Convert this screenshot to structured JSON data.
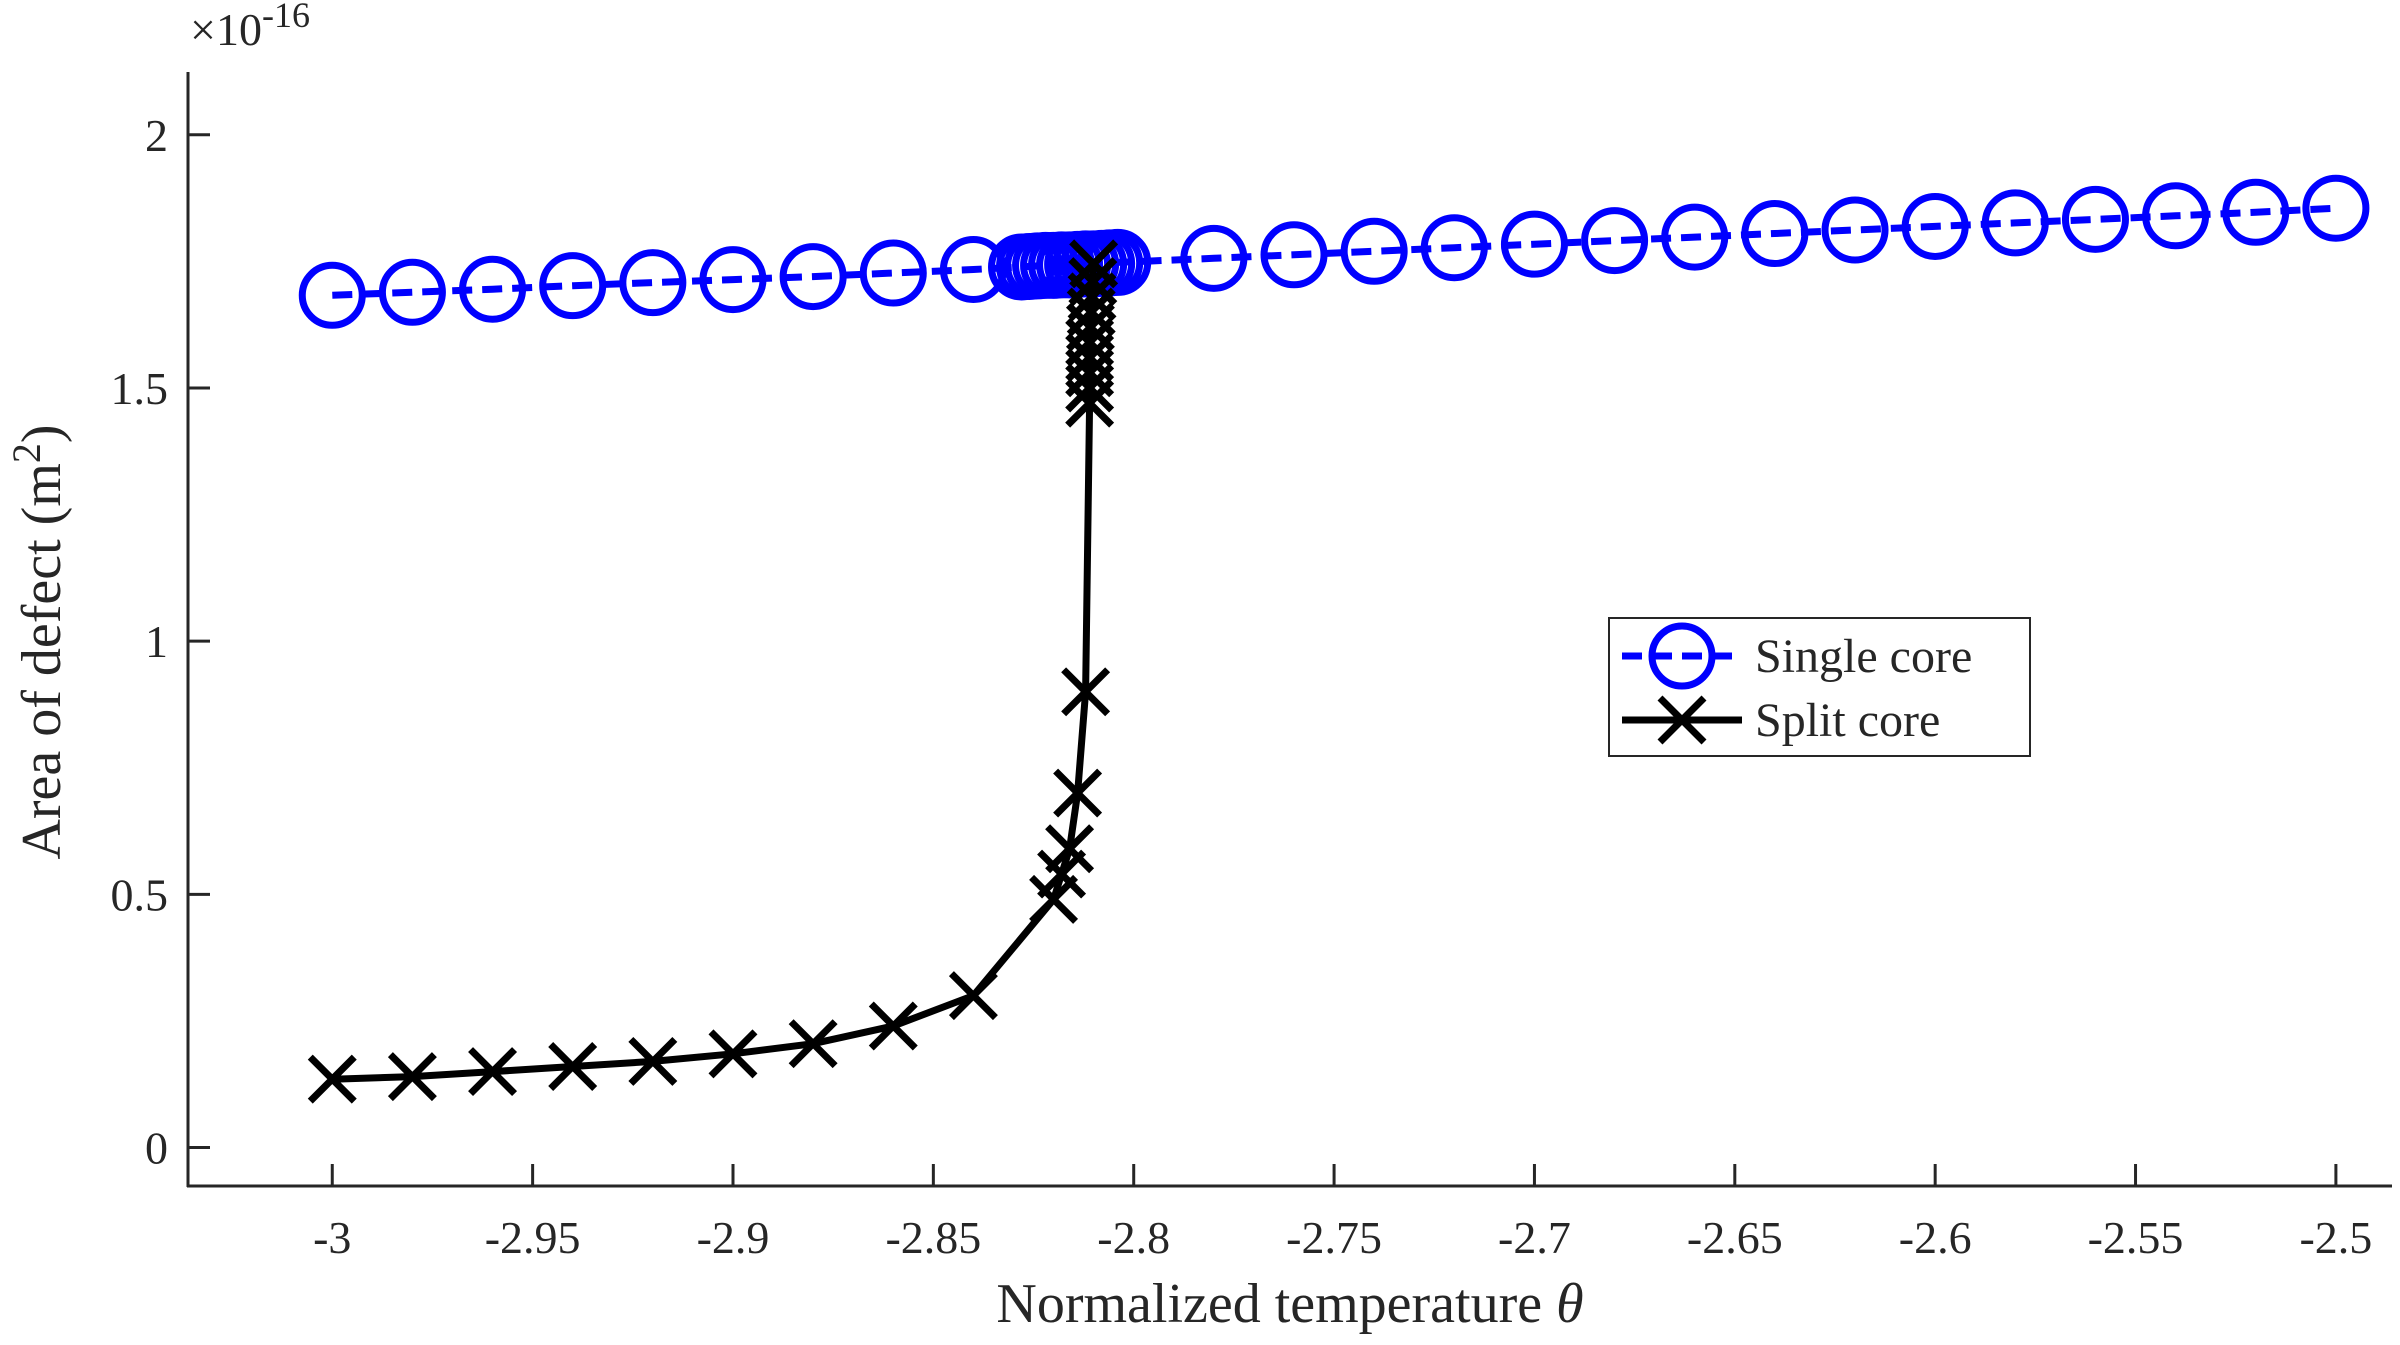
{
  "chart_data": {
    "type": "line",
    "title": "",
    "xlabel": "Normalized  temperature",
    "xlabel_symbol": "θ",
    "ylabel": "Area  of  defect  (m",
    "ylabel_sup": "2",
    "ylabel_end": ")",
    "y_exponent_prefix": "×10",
    "y_exponent": "-16",
    "xlim": [
      -3.036,
      -2.486
    ],
    "ylim": [
      -0.076,
      2.124
    ],
    "xticks": [
      -3,
      -2.95,
      -2.9,
      -2.85,
      -2.8,
      -2.75,
      -2.7,
      -2.65,
      -2.6,
      -2.55,
      -2.5
    ],
    "xtick_labels": [
      "-3",
      "-2.95",
      "-2.9",
      "-2.85",
      "-2.8",
      "-2.75",
      "-2.7",
      "-2.65",
      "-2.6",
      "-2.55",
      "-2.5"
    ],
    "yticks": [
      0,
      0.5,
      1,
      1.5,
      2
    ],
    "ytick_labels": [
      "0",
      "0.5",
      "1",
      "1.5",
      "2"
    ],
    "grid": false,
    "legend_placement": "center-right",
    "series": [
      {
        "name": "Single core",
        "color": "#0000ff",
        "line": "dashed",
        "marker": "circle",
        "x": [
          -3,
          -2.98,
          -2.96,
          -2.94,
          -2.92,
          -2.9,
          -2.88,
          -2.86,
          -2.84,
          -2.828,
          -2.826,
          -2.824,
          -2.822,
          -2.82,
          -2.818,
          -2.816,
          -2.814,
          -2.812,
          -2.81,
          -2.808,
          -2.806,
          -2.804,
          -2.78,
          -2.76,
          -2.74,
          -2.72,
          -2.7,
          -2.68,
          -2.66,
          -2.64,
          -2.62,
          -2.6,
          -2.58,
          -2.56,
          -2.54,
          -2.52,
          -2.5
        ],
        "y": [
          1.683,
          1.689,
          1.695,
          1.702,
          1.708,
          1.714,
          1.72,
          1.727,
          1.734,
          1.739,
          1.74,
          1.741,
          1.742,
          1.742,
          1.743,
          1.743,
          1.744,
          1.745,
          1.745,
          1.746,
          1.747,
          1.748,
          1.756,
          1.763,
          1.77,
          1.777,
          1.784,
          1.791,
          1.798,
          1.805,
          1.812,
          1.819,
          1.826,
          1.833,
          1.84,
          1.847,
          1.855
        ]
      },
      {
        "name": "Split core",
        "color": "#000000",
        "line": "solid",
        "marker": "x",
        "x": [
          -3,
          -2.98,
          -2.96,
          -2.94,
          -2.92,
          -2.9,
          -2.88,
          -2.86,
          -2.84,
          -2.82,
          -2.818,
          -2.816,
          -2.814,
          -2.812,
          -2.811,
          -2.811,
          -2.811,
          -2.811,
          -2.811,
          -2.8108,
          -2.8106,
          -2.8104,
          -2.8102,
          -2.81
        ],
        "y": [
          0.135,
          0.14,
          0.15,
          0.16,
          0.17,
          0.185,
          0.205,
          0.24,
          0.3,
          0.49,
          0.54,
          0.59,
          0.7,
          0.9,
          1.47,
          1.5,
          1.53,
          1.56,
          1.59,
          1.62,
          1.65,
          1.68,
          1.71,
          1.745
        ]
      }
    ]
  }
}
